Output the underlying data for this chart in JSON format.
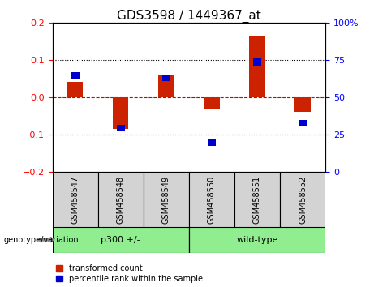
{
  "title": "GDS3598 / 1449367_at",
  "samples": [
    "GSM458547",
    "GSM458548",
    "GSM458549",
    "GSM458550",
    "GSM458551",
    "GSM458552"
  ],
  "red_values": [
    0.042,
    -0.085,
    0.06,
    -0.03,
    0.165,
    -0.038
  ],
  "blue_values": [
    0.06,
    -0.082,
    0.053,
    -0.12,
    0.095,
    -0.068
  ],
  "group1_label": "p300 +/-",
  "group1_indices": [
    0,
    1,
    2
  ],
  "group2_label": "wild-type",
  "group2_indices": [
    3,
    4,
    5
  ],
  "group_color": "#90EE90",
  "group_label": "genotype/variation",
  "ylim_left": [
    -0.2,
    0.2
  ],
  "ylim_right": [
    0,
    100
  ],
  "yticks_left": [
    -0.2,
    -0.1,
    0.0,
    0.1,
    0.2
  ],
  "yticks_right": [
    0,
    25,
    50,
    75,
    100
  ],
  "red_color": "#CC2200",
  "blue_color": "#0000CC",
  "bg_color": "#FFFFFF",
  "grid_color": "#000000",
  "zero_line_color": "#CC0000",
  "legend_red": "transformed count",
  "legend_blue": "percentile rank within the sample",
  "title_fontsize": 11,
  "tick_fontsize": 8,
  "sample_label_fontsize": 7,
  "geno_fontsize": 8
}
